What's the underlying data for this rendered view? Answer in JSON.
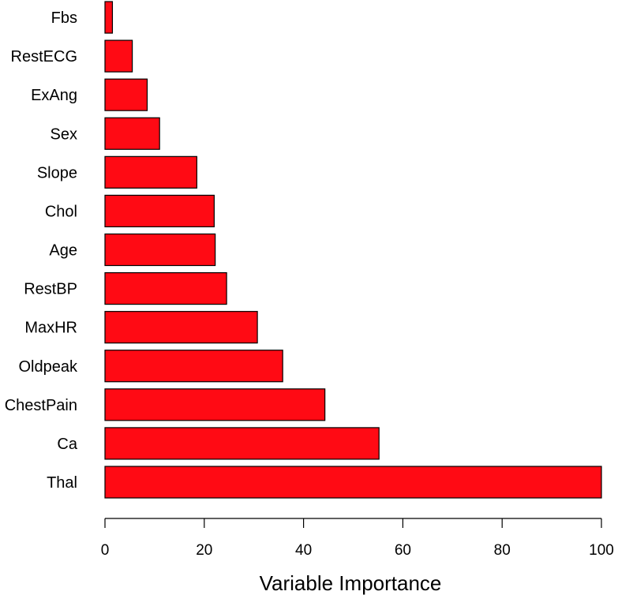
{
  "chart_data": {
    "type": "bar",
    "orientation": "horizontal",
    "categories": [
      "Fbs",
      "RestECG",
      "ExAng",
      "Sex",
      "Slope",
      "Chol",
      "Age",
      "RestBP",
      "MaxHR",
      "Oldpeak",
      "ChestPain",
      "Ca",
      "Thal"
    ],
    "values": [
      1.5,
      5.5,
      8.5,
      11,
      18.5,
      22,
      22.2,
      24.5,
      30.7,
      35.8,
      44.3,
      55.2,
      100
    ],
    "xlabel": "Variable Importance",
    "ylabel": "",
    "title": "",
    "xlim": [
      0,
      100
    ],
    "xticks": [
      0,
      20,
      40,
      60,
      80,
      100
    ],
    "grid": false,
    "legend": "none",
    "bar_color": "#ff0a14",
    "bar_edge_color": "#000000"
  }
}
